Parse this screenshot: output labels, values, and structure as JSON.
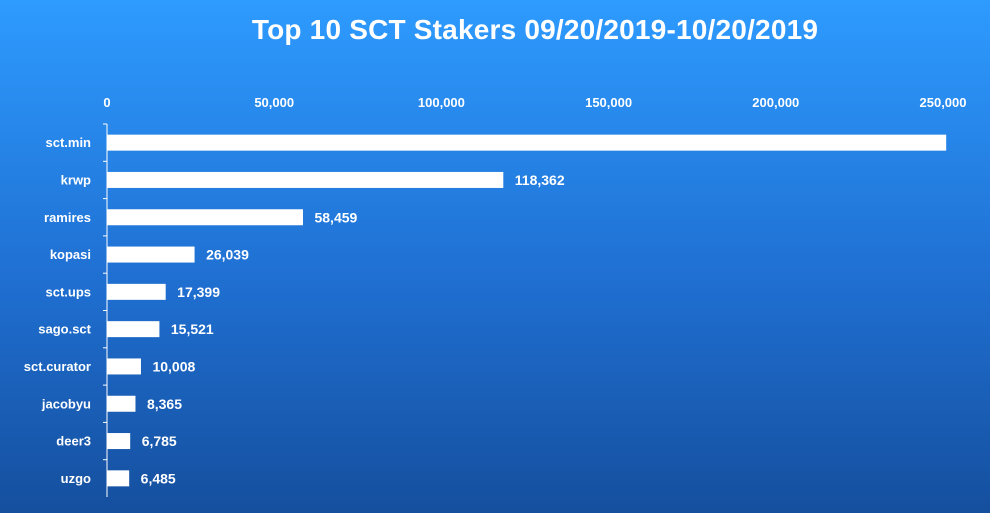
{
  "chart_data": {
    "type": "bar",
    "orientation": "horizontal",
    "title": "Top 10 SCT Stakers 09/20/2019-10/20/2019",
    "categories": [
      "sct.min",
      "krwp",
      "ramires",
      "kopasi",
      "sct.ups",
      "sago.sct",
      "sct.curator",
      "jacobyu",
      "deer3",
      "uzgo"
    ],
    "values": [
      250800,
      118362,
      58459,
      26039,
      17399,
      15521,
      10008,
      8365,
      6785,
      6485
    ],
    "data_labels": [
      "",
      "118,362",
      "58,459",
      "26,039",
      "17,399",
      "15,521",
      "10,008",
      "8,365",
      "6,785",
      "6,485"
    ],
    "x_ticks": [
      "0",
      "50,000",
      "100,000",
      "150,000",
      "200,000",
      "250,000"
    ],
    "xlim": [
      0,
      250000
    ],
    "axis_position": "top",
    "grid": false,
    "bar_color": "#ffffff",
    "text_color": "#ffffff"
  }
}
